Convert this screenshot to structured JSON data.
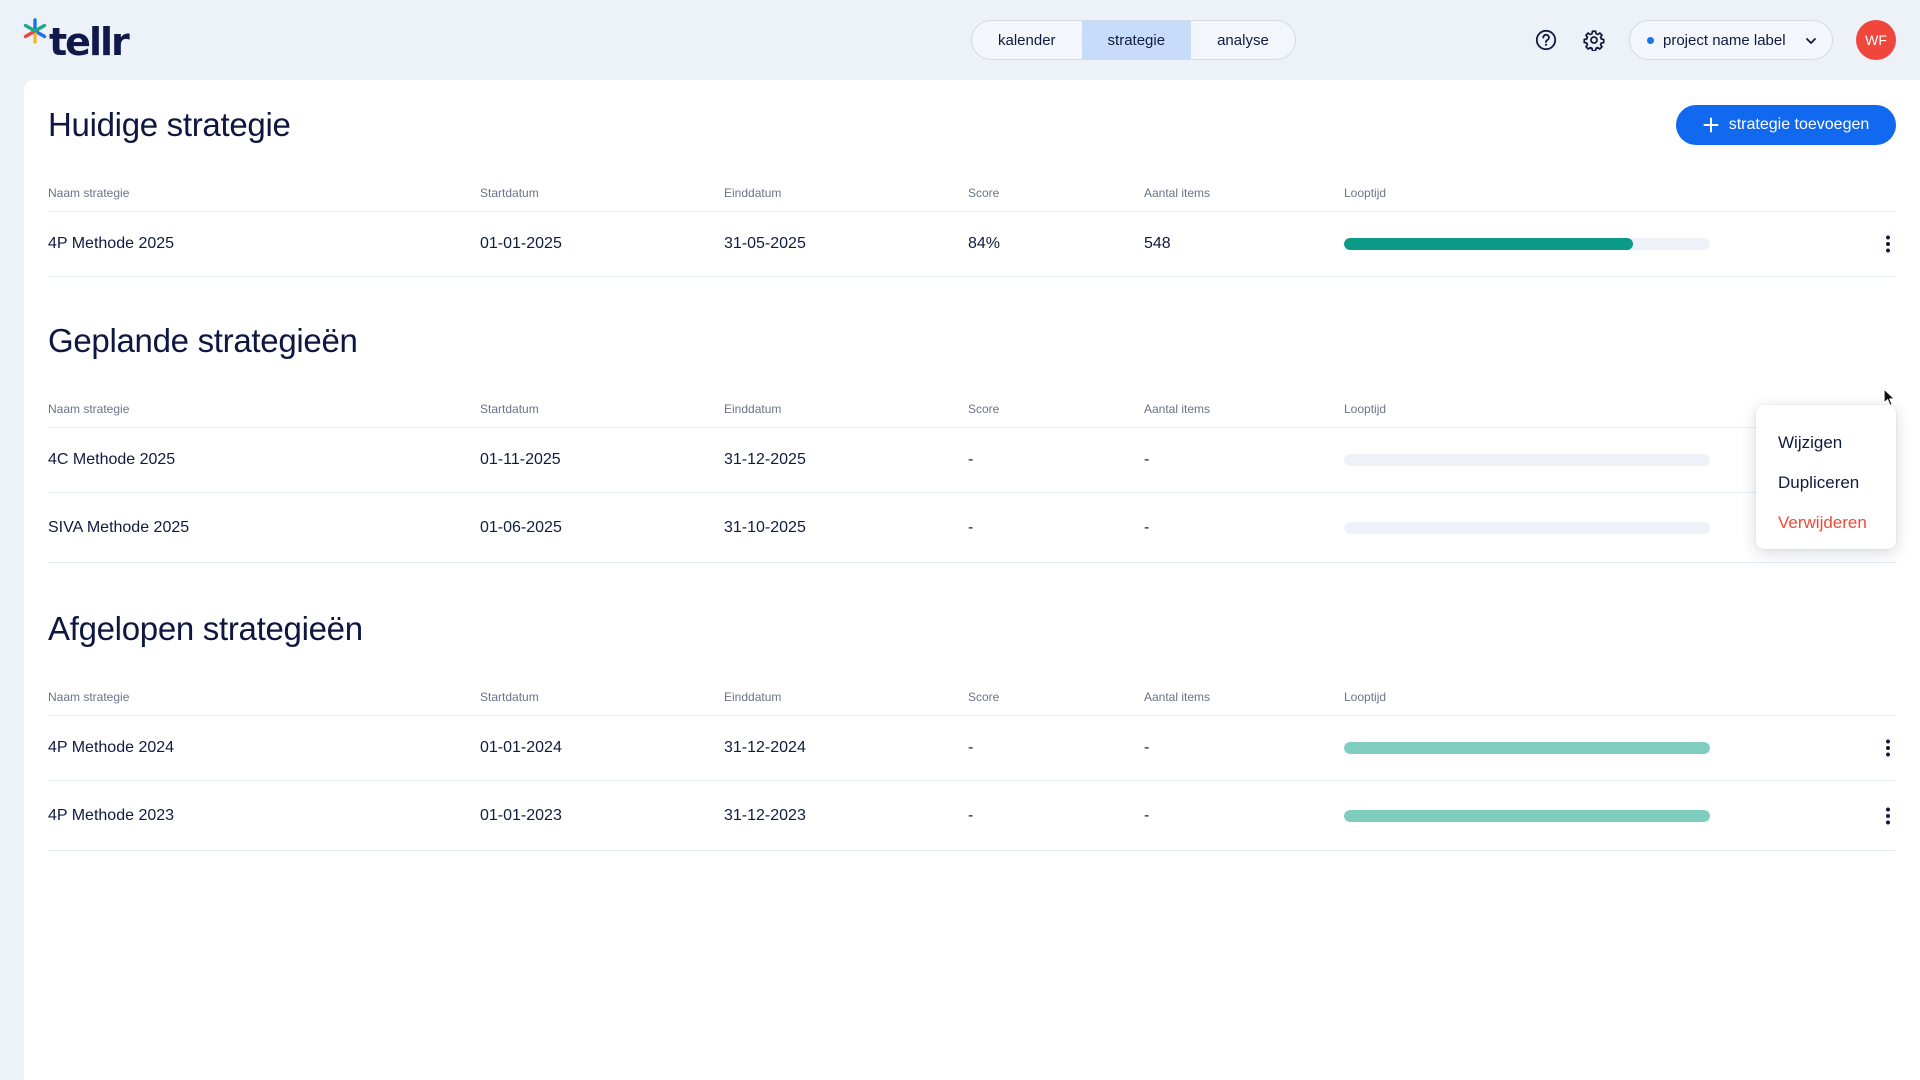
{
  "app": {
    "logo_text": "tellr",
    "logo_colors": [
      "#1a73e8",
      "#21a884",
      "#f0463c",
      "#f7b52b",
      "#11194a"
    ]
  },
  "nav": {
    "tabs": [
      {
        "label": "kalender",
        "active": false
      },
      {
        "label": "strategie",
        "active": true
      },
      {
        "label": "analyse",
        "active": false
      }
    ],
    "help_icon": "question-circle-icon",
    "settings_icon": "gear-icon",
    "project_select": {
      "label": "project name label",
      "dot_color": "#1a73e8"
    },
    "avatar_initials": "WF",
    "avatar_color": "#f0463c"
  },
  "add_button_label": "strategie toevoegen",
  "columns": [
    "Naam strategie",
    "Startdatum",
    "Einddatum",
    "Score",
    "Aantal items",
    "Looptijd"
  ],
  "sections": [
    {
      "title": "Huidige strategie",
      "rows": [
        {
          "name": "4P Methode 2025",
          "start": "01-01-2025",
          "end": "31-05-2025",
          "score": "84%",
          "items": "548",
          "progress": 0.79,
          "bar_color": "#0b9a86",
          "menu": true
        }
      ]
    },
    {
      "title": "Geplande strategieën",
      "rows": [
        {
          "name": "4C Methode 2025",
          "start": "01-11-2025",
          "end": "31-12-2025",
          "score": "-",
          "items": "-",
          "progress": 0,
          "bar_color": "#0b9a86",
          "menu": false
        },
        {
          "name": "SIVA Methode 2025",
          "start": "01-06-2025",
          "end": "31-10-2025",
          "score": "-",
          "items": "-",
          "progress": 0,
          "bar_color": "#0b9a86",
          "menu": false
        }
      ]
    },
    {
      "title": "Afgelopen strategieën",
      "rows": [
        {
          "name": "4P Methode 2024",
          "start": "01-01-2024",
          "end": "31-12-2024",
          "score": "-",
          "items": "-",
          "progress": 1,
          "bar_color": "#7fcdbf",
          "menu": true
        },
        {
          "name": "4P Methode 2023",
          "start": "01-01-2023",
          "end": "31-12-2023",
          "score": "-",
          "items": "-",
          "progress": 1,
          "bar_color": "#7fcdbf",
          "menu": true
        }
      ]
    }
  ],
  "context_menu": {
    "items": [
      {
        "label": "Wijzigen",
        "danger": false
      },
      {
        "label": "Dupliceren",
        "danger": false
      },
      {
        "label": "Verwijderen",
        "danger": true
      }
    ],
    "danger_color": "#ef4a35"
  }
}
